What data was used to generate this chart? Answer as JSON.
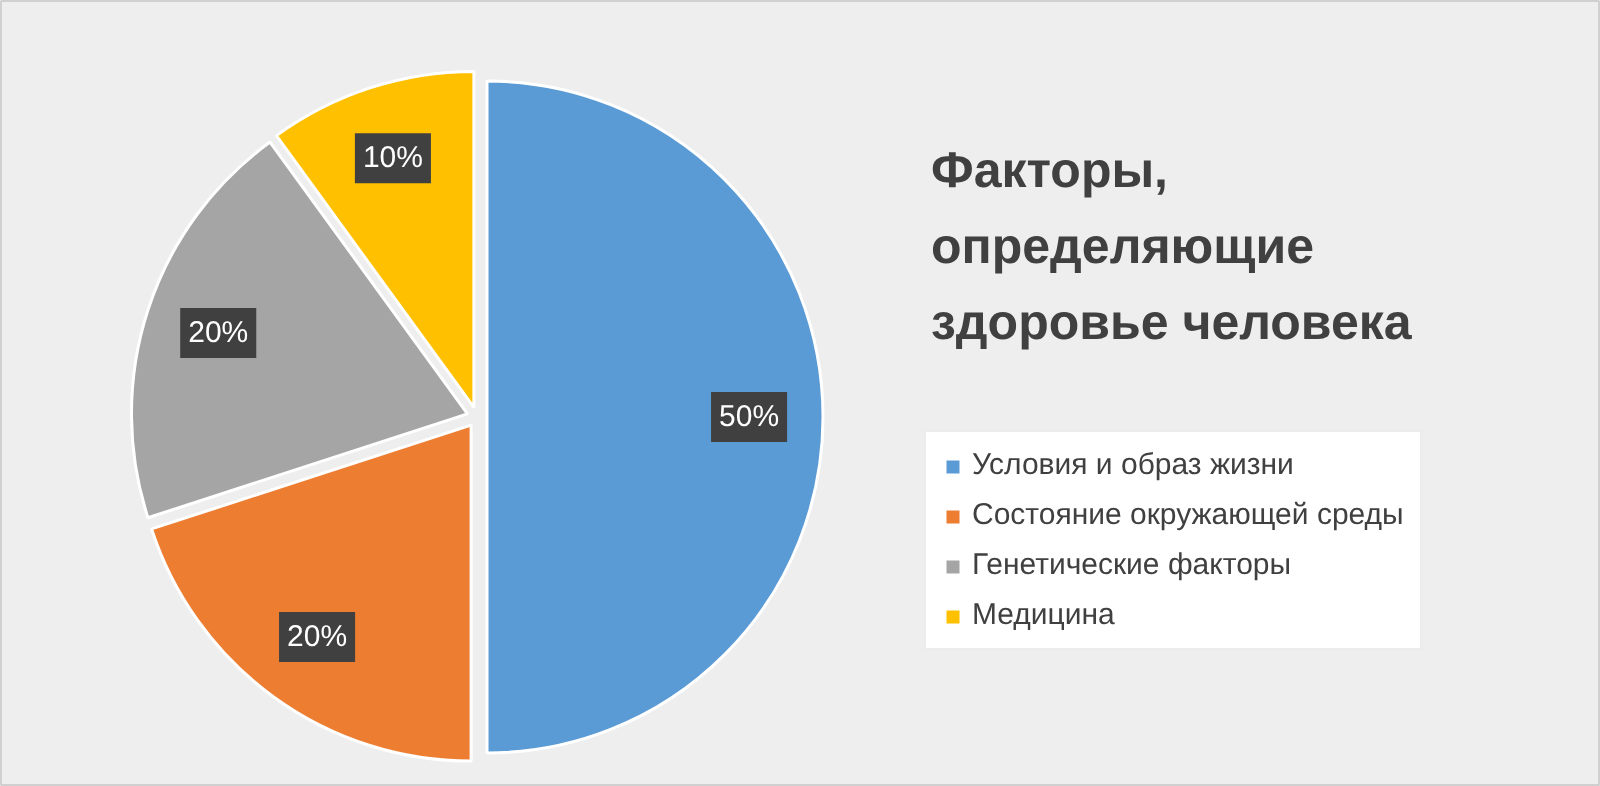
{
  "chart_data": {
    "type": "pie",
    "title": "Факторы, определяющие здоровье человека",
    "categories": [
      "Условия и образ жизни",
      "Состояние окружающей среды",
      "Генетические факторы",
      "Медицина"
    ],
    "values": [
      50,
      20,
      20,
      10
    ],
    "colors": [
      "#5b9bd5",
      "#ed7d31",
      "#a5a5a5",
      "#ffc000"
    ],
    "value_labels": [
      "50%",
      "20%",
      "20%",
      "10%"
    ],
    "legend": "right"
  }
}
